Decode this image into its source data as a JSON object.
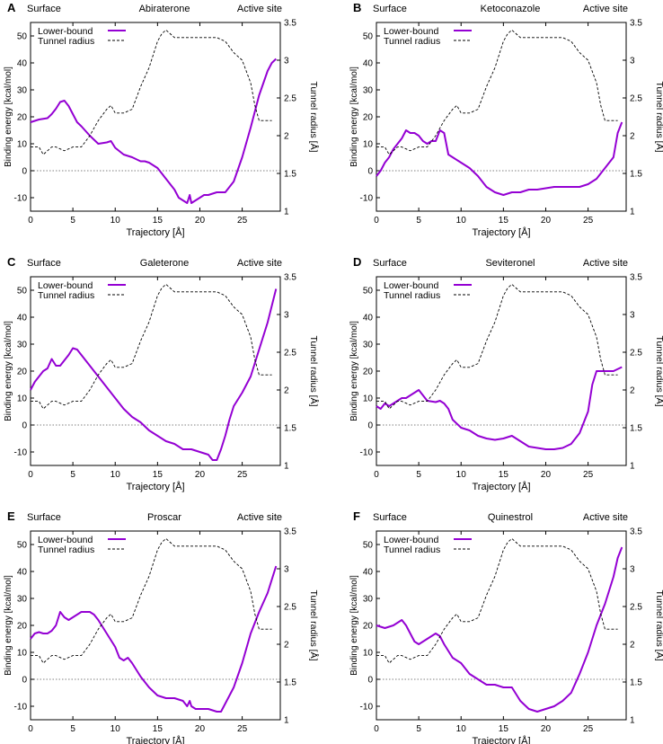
{
  "figure": {
    "x_label": "Trajectory [Å]",
    "y_left_label": "Binding energy [kcal/mol]",
    "y_right_label": "Tunnel radius [Å]",
    "surface_label": "Surface",
    "active_site_label": "Active site",
    "legend": {
      "energy": "Lower-bound",
      "radius": "Tunnel radius"
    },
    "colors": {
      "energy": "#9400D3",
      "radius": "#000000",
      "zero_line": "#555555"
    },
    "x_ticks": [
      0,
      5,
      10,
      15,
      20,
      25
    ],
    "y_left_ticks": [
      -10,
      0,
      10,
      20,
      30,
      40,
      50
    ],
    "y_right_ticks": [
      "1",
      "1.5",
      "2",
      "2.5",
      "3",
      "3.5"
    ]
  },
  "chart_data": [
    {
      "panel": "A",
      "title": "Abiraterone",
      "type": "line",
      "xlim": [
        0,
        29.5
      ],
      "ylim": [
        -15,
        55
      ],
      "y2lim": [
        1,
        3.5
      ],
      "series": [
        {
          "name": "Lower-bound",
          "axis": "left",
          "x": [
            0,
            0.5,
            1,
            2,
            2.5,
            3,
            3.5,
            4,
            4.5,
            5,
            5.5,
            6,
            7,
            8,
            9,
            9.5,
            10,
            11,
            12,
            13,
            13.5,
            14,
            15,
            16,
            17,
            17.5,
            18,
            18.5,
            18.8,
            19,
            19.5,
            20,
            20.5,
            21,
            22,
            23,
            24,
            25,
            26,
            27,
            28,
            28.5,
            29
          ],
          "y": [
            18,
            18.5,
            19,
            19.5,
            21,
            23,
            25.5,
            26,
            24,
            21,
            18,
            16.5,
            13,
            10,
            10.5,
            11,
            8.5,
            6,
            5,
            3.5,
            3.5,
            3,
            1,
            -3,
            -7,
            -10,
            -11,
            -12,
            -9,
            -12,
            -11,
            -10,
            -9,
            -9,
            -8,
            -8,
            -4,
            5,
            16,
            28,
            37,
            40,
            41.5
          ]
        },
        {
          "name": "Tunnel radius",
          "axis": "right",
          "x": [
            0,
            1,
            1.5,
            2,
            2.5,
            3,
            4,
            5,
            6,
            7,
            8,
            9,
            9.5,
            10,
            11,
            12,
            13,
            14,
            15,
            15.5,
            16,
            17,
            18,
            19,
            20,
            21,
            22,
            23,
            24,
            25,
            26,
            26.5,
            27,
            28.5
          ],
          "y": [
            1.85,
            1.85,
            1.75,
            1.8,
            1.85,
            1.85,
            1.8,
            1.85,
            1.85,
            2,
            2.2,
            2.35,
            2.4,
            2.3,
            2.3,
            2.35,
            2.65,
            2.9,
            3.25,
            3.35,
            3.4,
            3.3,
            3.3,
            3.3,
            3.3,
            3.3,
            3.3,
            3.25,
            3.1,
            3.0,
            2.7,
            2.4,
            2.2,
            2.2
          ]
        }
      ]
    },
    {
      "panel": "B",
      "title": "Ketoconazole",
      "type": "line",
      "xlim": [
        0,
        29.5
      ],
      "ylim": [
        -15,
        55
      ],
      "y2lim": [
        1,
        3.5
      ],
      "series": [
        {
          "name": "Lower-bound",
          "axis": "left",
          "x": [
            0,
            0.5,
            1,
            1.5,
            2,
            2.5,
            3,
            3.5,
            4,
            4.5,
            5,
            5.5,
            6,
            6.5,
            7,
            7.5,
            8,
            8.5,
            9,
            10,
            11,
            12,
            13,
            14,
            15,
            16,
            17,
            18,
            19,
            20,
            21,
            22,
            23,
            24,
            25,
            26,
            27,
            28,
            28.5,
            29
          ],
          "y": [
            -2,
            0,
            3,
            5,
            8,
            10,
            12,
            15,
            14,
            14,
            13,
            11,
            10,
            11,
            11,
            15,
            14,
            6,
            5,
            3,
            1,
            -2,
            -6,
            -8,
            -9,
            -8,
            -8,
            -7,
            -7,
            -6.5,
            -6,
            -6,
            -6,
            -6,
            -5,
            -3,
            1,
            5,
            14,
            18
          ]
        },
        {
          "name": "Tunnel radius",
          "axis": "right",
          "x": [
            0,
            1,
            1.5,
            2,
            2.5,
            3,
            4,
            5,
            6,
            7,
            8,
            9,
            9.5,
            10,
            11,
            12,
            13,
            14,
            15,
            15.5,
            16,
            17,
            18,
            19,
            20,
            21,
            22,
            23,
            24,
            25,
            26,
            26.5,
            27,
            28.5
          ],
          "y": [
            1.85,
            1.85,
            1.75,
            1.8,
            1.85,
            1.85,
            1.8,
            1.85,
            1.85,
            2,
            2.2,
            2.35,
            2.4,
            2.3,
            2.3,
            2.35,
            2.65,
            2.9,
            3.25,
            3.35,
            3.4,
            3.3,
            3.3,
            3.3,
            3.3,
            3.3,
            3.3,
            3.25,
            3.1,
            3.0,
            2.7,
            2.4,
            2.2,
            2.2
          ]
        }
      ]
    },
    {
      "panel": "C",
      "title": "Galeterone",
      "type": "line",
      "xlim": [
        0,
        29.5
      ],
      "ylim": [
        -15,
        55
      ],
      "y2lim": [
        1,
        3.5
      ],
      "series": [
        {
          "name": "Lower-bound",
          "axis": "left",
          "x": [
            0,
            0.5,
            1,
            1.5,
            2,
            2.5,
            3,
            3.5,
            4,
            4.5,
            5,
            5.5,
            6,
            7,
            8,
            9,
            10,
            11,
            12,
            13,
            14,
            15,
            16,
            17,
            18,
            19,
            20,
            21,
            21.5,
            22,
            22.5,
            23,
            23.5,
            24,
            25,
            26,
            27,
            28,
            29
          ],
          "y": [
            13,
            16,
            18,
            20,
            21,
            24.5,
            22,
            22,
            24,
            26,
            28.5,
            28,
            26,
            22,
            18,
            14,
            10,
            6,
            3,
            1,
            -2,
            -4,
            -6,
            -7,
            -9,
            -9,
            -10,
            -11,
            -13,
            -13,
            -9,
            -4,
            2,
            7,
            12,
            18,
            28,
            38,
            50.5
          ]
        },
        {
          "name": "Tunnel radius",
          "axis": "right",
          "x": [
            0,
            1,
            1.5,
            2,
            2.5,
            3,
            4,
            5,
            6,
            7,
            8,
            9,
            9.5,
            10,
            11,
            12,
            13,
            14,
            15,
            15.5,
            16,
            17,
            18,
            19,
            20,
            21,
            22,
            23,
            24,
            25,
            26,
            26.5,
            27,
            28.5
          ],
          "y": [
            1.85,
            1.85,
            1.75,
            1.8,
            1.85,
            1.85,
            1.8,
            1.85,
            1.85,
            2,
            2.2,
            2.35,
            2.4,
            2.3,
            2.3,
            2.35,
            2.65,
            2.9,
            3.25,
            3.35,
            3.4,
            3.3,
            3.3,
            3.3,
            3.3,
            3.3,
            3.3,
            3.25,
            3.1,
            3.0,
            2.7,
            2.4,
            2.2,
            2.2
          ]
        }
      ]
    },
    {
      "panel": "D",
      "title": "Seviteronel",
      "type": "line",
      "xlim": [
        0,
        29.5
      ],
      "ylim": [
        -15,
        55
      ],
      "y2lim": [
        1,
        3.5
      ],
      "series": [
        {
          "name": "Lower-bound",
          "axis": "left",
          "x": [
            0,
            0.5,
            1,
            1.5,
            2,
            2.5,
            3,
            3.5,
            4,
            4.5,
            5,
            5.5,
            6,
            7,
            7.5,
            8,
            8.5,
            9,
            10,
            11,
            12,
            13,
            14,
            15,
            16,
            17,
            18,
            19,
            20,
            21,
            22,
            23,
            24,
            25,
            25.5,
            26,
            27,
            28,
            29
          ],
          "y": [
            7,
            6,
            8,
            7,
            8,
            9,
            10,
            10,
            11,
            12,
            13,
            11,
            9,
            8.5,
            9,
            8,
            6,
            2,
            -1,
            -2,
            -4,
            -5,
            -5.5,
            -5,
            -4,
            -6,
            -8,
            -8.5,
            -9,
            -9,
            -8.5,
            -7,
            -3,
            5,
            15,
            20,
            20,
            20,
            21.5
          ]
        },
        {
          "name": "Tunnel radius",
          "axis": "right",
          "x": [
            0,
            1,
            1.5,
            2,
            2.5,
            3,
            4,
            5,
            6,
            7,
            8,
            9,
            9.5,
            10,
            11,
            12,
            13,
            14,
            15,
            15.5,
            16,
            17,
            18,
            19,
            20,
            21,
            22,
            23,
            24,
            25,
            26,
            26.5,
            27,
            28.5
          ],
          "y": [
            1.85,
            1.85,
            1.75,
            1.8,
            1.85,
            1.85,
            1.8,
            1.85,
            1.85,
            2,
            2.2,
            2.35,
            2.4,
            2.3,
            2.3,
            2.35,
            2.65,
            2.9,
            3.25,
            3.35,
            3.4,
            3.3,
            3.3,
            3.3,
            3.3,
            3.3,
            3.3,
            3.25,
            3.1,
            3.0,
            2.7,
            2.4,
            2.2,
            2.2
          ]
        }
      ]
    },
    {
      "panel": "E",
      "title": "Proscar",
      "type": "line",
      "xlim": [
        0,
        29.5
      ],
      "ylim": [
        -15,
        55
      ],
      "y2lim": [
        1,
        3.5
      ],
      "series": [
        {
          "name": "Lower-bound",
          "axis": "left",
          "x": [
            0,
            0.5,
            1,
            1.5,
            2,
            2.5,
            3,
            3.5,
            4,
            4.5,
            5,
            5.5,
            6,
            6.5,
            7,
            7.5,
            8,
            9,
            10,
            10.5,
            11,
            11.5,
            12,
            13,
            14,
            15,
            16,
            17,
            18,
            18.5,
            18.8,
            19,
            19.5,
            20,
            21,
            22,
            22.5,
            23,
            24,
            25,
            26,
            27,
            28,
            29
          ],
          "y": [
            15,
            17,
            17.5,
            17,
            17,
            18,
            20,
            25,
            23,
            22,
            23,
            24,
            25,
            25,
            25,
            24,
            22,
            17,
            12,
            8,
            7,
            8,
            6,
            1,
            -3,
            -6,
            -7,
            -7,
            -8,
            -10,
            -8,
            -10,
            -11,
            -11,
            -11,
            -12,
            -12,
            -9,
            -3,
            6,
            17,
            25,
            32,
            42
          ]
        },
        {
          "name": "Tunnel radius",
          "axis": "right",
          "x": [
            0,
            1,
            1.5,
            2,
            2.5,
            3,
            4,
            5,
            6,
            7,
            8,
            9,
            9.5,
            10,
            11,
            12,
            13,
            14,
            15,
            15.5,
            16,
            17,
            18,
            19,
            20,
            21,
            22,
            23,
            24,
            25,
            26,
            26.5,
            27,
            28.5
          ],
          "y": [
            1.85,
            1.85,
            1.75,
            1.8,
            1.85,
            1.85,
            1.8,
            1.85,
            1.85,
            2,
            2.2,
            2.35,
            2.4,
            2.3,
            2.3,
            2.35,
            2.65,
            2.9,
            3.25,
            3.35,
            3.4,
            3.3,
            3.3,
            3.3,
            3.3,
            3.3,
            3.3,
            3.25,
            3.1,
            3.0,
            2.7,
            2.4,
            2.2,
            2.2
          ]
        }
      ]
    },
    {
      "panel": "F",
      "title": "Quinestrol",
      "type": "line",
      "xlim": [
        0,
        29.5
      ],
      "ylim": [
        -15,
        55
      ],
      "y2lim": [
        1,
        3.5
      ],
      "series": [
        {
          "name": "Lower-bound",
          "axis": "left",
          "x": [
            0,
            0.5,
            1,
            1.5,
            2,
            2.5,
            3,
            3.5,
            4,
            4.5,
            5,
            5.5,
            6,
            6.5,
            7,
            7.5,
            8,
            9,
            10,
            11,
            12,
            13,
            14,
            15,
            16,
            17,
            18,
            19,
            20,
            21,
            22,
            23,
            24,
            25,
            26,
            27,
            28,
            28.5,
            29
          ],
          "y": [
            20,
            19.5,
            19,
            19.5,
            20,
            21,
            22,
            20,
            17,
            14,
            13,
            14,
            15,
            16,
            17,
            16,
            13,
            8,
            6,
            2,
            0,
            -2,
            -2,
            -3,
            -3,
            -8,
            -11,
            -12,
            -11,
            -10,
            -8,
            -5,
            2,
            10,
            20,
            28,
            38,
            45,
            49
          ]
        },
        {
          "name": "Tunnel radius",
          "axis": "right",
          "x": [
            0,
            1,
            1.5,
            2,
            2.5,
            3,
            4,
            5,
            6,
            7,
            8,
            9,
            9.5,
            10,
            11,
            12,
            13,
            14,
            15,
            15.5,
            16,
            17,
            18,
            19,
            20,
            21,
            22,
            23,
            24,
            25,
            26,
            26.5,
            27,
            28.5
          ],
          "y": [
            1.85,
            1.85,
            1.75,
            1.8,
            1.85,
            1.85,
            1.8,
            1.85,
            1.85,
            2,
            2.2,
            2.35,
            2.4,
            2.3,
            2.3,
            2.35,
            2.65,
            2.9,
            3.25,
            3.35,
            3.4,
            3.3,
            3.3,
            3.3,
            3.3,
            3.3,
            3.3,
            3.25,
            3.1,
            3.0,
            2.7,
            2.4,
            2.2,
            2.2
          ]
        }
      ]
    }
  ]
}
